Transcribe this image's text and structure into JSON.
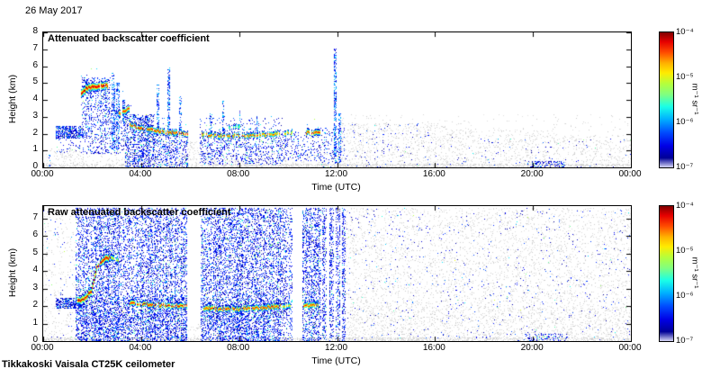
{
  "page": {
    "date_label": "26 May 2017",
    "instrument_label": "Tikkakoski Vaisala CT25K ceilometer"
  },
  "chart_data": [
    {
      "type": "heatmap",
      "title": "Attenuated backscatter coefficient",
      "xlabel": "Time (UTC)",
      "ylabel": "Height (km)",
      "x_range_hours": [
        0,
        24
      ],
      "x_tick_hours": [
        0,
        4,
        8,
        12,
        16,
        20,
        24
      ],
      "x_ticks": [
        "00:00",
        "04:00",
        "08:00",
        "12:00",
        "16:00",
        "20:00",
        "00:00"
      ],
      "y_range_km": [
        0,
        8
      ],
      "y_ticks": [
        0,
        1,
        2,
        3,
        4,
        5,
        6,
        7,
        8
      ],
      "colorbar": {
        "colormap": "jet",
        "scale": "log",
        "min": 1e-07,
        "max": 0.0001,
        "ticks": [
          "10⁻⁴",
          "10⁻⁵",
          "10⁻⁶",
          "10⁻⁷"
        ],
        "unit": "m⁻¹ sr⁻¹"
      },
      "features": {
        "gray_regions": [
          {
            "t": [
              0,
              1.6
            ],
            "h": [
              0,
              1.1
            ],
            "d": 0.1
          },
          {
            "t": [
              1.6,
              12.2
            ],
            "h": [
              0,
              0.9
            ],
            "d": 0.08
          },
          {
            "t": [
              0,
              24
            ],
            "h": [
              0,
              0.18
            ],
            "d": 0.45
          },
          {
            "t": [
              12.2,
              16.5
            ],
            "h": [
              0,
              2.6
            ],
            "d": 0.1
          },
          {
            "t": [
              16.5,
              20.5
            ],
            "h": [
              0,
              2.2
            ],
            "d": 0.09
          },
          {
            "t": [
              20.5,
              24
            ],
            "h": [
              0,
              1.9
            ],
            "d": 0.08
          },
          {
            "t": [
              12.2,
              24
            ],
            "h": [
              0,
              3.1
            ],
            "d": 0.02
          },
          {
            "t": [
              5.9,
              6.6
            ],
            "h": [
              0,
              1.6
            ],
            "d": 0.08
          }
        ],
        "blue_regions": [
          {
            "t": [
              0.55,
              1.65
            ],
            "h": [
              1.75,
              2.45
            ],
            "d": 0.55
          },
          {
            "t": [
              0.55,
              1.65
            ],
            "h": [
              0.9,
              1.75
            ],
            "d": 0.07
          },
          {
            "t": [
              1.6,
              2.75
            ],
            "h": [
              0.8,
              4.4
            ],
            "d": 0.2
          },
          {
            "t": [
              1.6,
              2.75
            ],
            "h": [
              4.4,
              5.3
            ],
            "d": 0.25
          },
          {
            "t": [
              2.75,
              3.35
            ],
            "h": [
              0.8,
              3.4
            ],
            "d": 0.15
          },
          {
            "t": [
              3.35,
              4.5
            ],
            "h": [
              0,
              3.1
            ],
            "d": 0.38
          },
          {
            "t": [
              4.5,
              5.9
            ],
            "h": [
              0,
              2.1
            ],
            "d": 0.25
          },
          {
            "t": [
              6.4,
              9.75
            ],
            "h": [
              0.2,
              1.95
            ],
            "d": 0.2
          },
          {
            "t": [
              6.4,
              9.75
            ],
            "h": [
              1.95,
              2.9
            ],
            "d": 0.06
          },
          {
            "t": [
              9.75,
              11.35
            ],
            "h": [
              0.4,
              2.1
            ],
            "d": 0.15
          },
          {
            "t": [
              11.35,
              12.3
            ],
            "h": [
              0,
              2.4
            ],
            "d": 0.1
          },
          {
            "t": [
              12.3,
              16
            ],
            "h": [
              0,
              2.6
            ],
            "d": 0.022
          },
          {
            "t": [
              16,
              24
            ],
            "h": [
              0,
              1.8
            ],
            "d": 0.012
          },
          {
            "t": [
              19.8,
              21.3
            ],
            "h": [
              0.05,
              0.35
            ],
            "d": 0.25
          }
        ],
        "columns": [
          {
            "t": 0.25,
            "w": 0.05,
            "h": [
              0.1,
              1.0
            ],
            "d": 0.3
          },
          {
            "t": 2.88,
            "w": 0.1,
            "h": [
              1.0,
              5.6
            ],
            "d": 0.45
          },
          {
            "t": 3.05,
            "w": 0.08,
            "h": [
              1.0,
              5.0
            ],
            "d": 0.4
          },
          {
            "t": 3.3,
            "w": 0.08,
            "h": [
              2.5,
              4.0
            ],
            "d": 0.4
          },
          {
            "t": 4.68,
            "w": 0.08,
            "h": [
              2.2,
              4.9
            ],
            "d": 0.45
          },
          {
            "t": 5.12,
            "w": 0.08,
            "h": [
              2.1,
              5.9
            ],
            "d": 0.45
          },
          {
            "t": 5.6,
            "w": 0.07,
            "h": [
              2.0,
              4.3
            ],
            "d": 0.4
          },
          {
            "t": 6.85,
            "w": 0.06,
            "h": [
              2.0,
              3.3
            ],
            "d": 0.4
          },
          {
            "t": 7.35,
            "w": 0.06,
            "h": [
              2.0,
              3.9
            ],
            "d": 0.4
          },
          {
            "t": 8.05,
            "w": 0.06,
            "h": [
              2.1,
              3.4
            ],
            "d": 0.35
          },
          {
            "t": 8.75,
            "w": 0.06,
            "h": [
              2.0,
              3.1
            ],
            "d": 0.35
          },
          {
            "t": 11.92,
            "w": 0.09,
            "h": [
              0.3,
              7.1
            ],
            "d": 0.5
          },
          {
            "t": 12.1,
            "w": 0.07,
            "h": [
              0.3,
              3.2
            ],
            "d": 0.4
          }
        ],
        "cloud_lines": [
          {
            "pts": [
              [
                1.52,
                4.4
              ],
              [
                1.75,
                4.7
              ],
              [
                2.0,
                4.8
              ],
              [
                2.3,
                4.85
              ],
              [
                2.62,
                4.9
              ]
            ],
            "th": 0.28,
            "peak": 0.97,
            "gap": 0.05,
            "halo": 0.5
          },
          {
            "pts": [
              [
                3.12,
                3.25
              ],
              [
                3.5,
                3.5
              ]
            ],
            "th": 0.22,
            "peak": 0.9,
            "gap": 0.1,
            "halo": 0.4
          },
          {
            "pts": [
              [
                3.55,
                2.55
              ],
              [
                3.9,
                2.35
              ],
              [
                4.4,
                2.25
              ],
              [
                5.0,
                2.1
              ],
              [
                5.55,
                2.05
              ],
              [
                5.9,
                2.0
              ]
            ],
            "th": 0.2,
            "peak": 0.92,
            "gap": 0.25,
            "halo": 0.5
          },
          {
            "pts": [
              [
                6.45,
                1.95
              ],
              [
                7.4,
                1.88
              ],
              [
                8.4,
                1.92
              ],
              [
                9.7,
                2.0
              ]
            ],
            "th": 0.18,
            "peak": 0.85,
            "gap": 0.3,
            "halo": 0.5
          },
          {
            "pts": [
              [
                9.85,
                2.02
              ],
              [
                10.25,
                2.08
              ]
            ],
            "th": 0.18,
            "peak": 0.8,
            "gap": 0.3,
            "halo": 0.4
          },
          {
            "pts": [
              [
                10.75,
                2.1
              ],
              [
                11.3,
                2.12
              ]
            ],
            "th": 0.2,
            "peak": 0.9,
            "gap": 0.2,
            "halo": 0.4
          },
          {
            "pts": [
              [
                7.55,
                2.4
              ],
              [
                8.15,
                2.5
              ]
            ],
            "th": 0.15,
            "peak": 0.6,
            "gap": 0.5,
            "halo": 0.3
          }
        ]
      }
    },
    {
      "type": "heatmap",
      "title": "Raw attenuated backscatter coefficient",
      "xlabel": "Time (UTC)",
      "ylabel": "Height (km)",
      "x_range_hours": [
        0,
        24
      ],
      "x_tick_hours": [
        0,
        4,
        8,
        12,
        16,
        20,
        24
      ],
      "x_ticks": [
        "00:00",
        "04:00",
        "08:00",
        "12:00",
        "16:00",
        "20:00",
        "00:00"
      ],
      "y_range_km": [
        0,
        7.7
      ],
      "y_ticks": [
        0,
        1,
        2,
        3,
        4,
        5,
        6,
        7
      ],
      "colorbar": {
        "colormap": "jet",
        "scale": "log",
        "min": 1e-07,
        "max": 0.0001,
        "ticks": [
          "10⁻⁴",
          "10⁻⁵",
          "10⁻⁶",
          "10⁻⁷"
        ],
        "unit": "m⁻¹ sr⁻¹"
      },
      "features": {
        "gray_regions": [
          {
            "t": [
              0,
              1.35
            ],
            "h": [
              0,
              7.55
            ],
            "d": 0.05
          },
          {
            "t": [
              12.35,
              24
            ],
            "h": [
              0,
              7.55
            ],
            "d": 0.085
          },
          {
            "t": [
              12.35,
              24
            ],
            "h": [
              0,
              2.0
            ],
            "d": 0.06
          },
          {
            "t": [
              0,
              24
            ],
            "h": [
              0,
              0.18
            ],
            "d": 0.45
          },
          {
            "t": [
              5.9,
              6.45
            ],
            "h": [
              0,
              1.2
            ],
            "d": 0.05
          }
        ],
        "blue_regions": [
          {
            "t": [
              0.55,
              1.65
            ],
            "h": [
              1.85,
              2.45
            ],
            "d": 0.6
          },
          {
            "t": [
              0,
              1.35
            ],
            "h": [
              0,
              7.55
            ],
            "d": 0.01
          },
          {
            "t": [
              1.35,
              5.85
            ],
            "h": [
              0,
              7.55
            ],
            "d": 0.28
          },
          {
            "t": [
              1.35,
              5.85
            ],
            "h": [
              0,
              2.6
            ],
            "d": 0.15
          },
          {
            "t": [
              6.45,
              9.7
            ],
            "h": [
              0,
              7.55
            ],
            "d": 0.28
          },
          {
            "t": [
              6.45,
              9.7
            ],
            "h": [
              0,
              2.4
            ],
            "d": 0.15
          },
          {
            "t": [
              9.7,
              10.15
            ],
            "h": [
              0,
              7.55
            ],
            "d": 0.22
          },
          {
            "t": [
              10.6,
              11.35
            ],
            "h": [
              0,
              7.55
            ],
            "d": 0.28
          },
          {
            "t": [
              11.4,
              11.55
            ],
            "h": [
              0,
              7.55
            ],
            "d": 0.32
          },
          {
            "t": [
              11.7,
              11.85
            ],
            "h": [
              0,
              7.55
            ],
            "d": 0.32
          },
          {
            "t": [
              11.98,
              12.12
            ],
            "h": [
              0,
              7.55
            ],
            "d": 0.32
          },
          {
            "t": [
              12.22,
              12.34
            ],
            "h": [
              0,
              7.55
            ],
            "d": 0.28
          },
          {
            "t": [
              12.35,
              24
            ],
            "h": [
              0,
              7.55
            ],
            "d": 0.012
          },
          {
            "t": [
              19.6,
              21.4
            ],
            "h": [
              0.05,
              0.4
            ],
            "d": 0.2
          }
        ],
        "columns": [],
        "cloud_lines": [
          {
            "pts": [
              [
                1.4,
                2.3
              ],
              [
                1.7,
                2.5
              ],
              [
                1.95,
                2.9
              ],
              [
                2.2,
                4.3
              ],
              [
                2.45,
                4.7
              ],
              [
                2.7,
                4.8
              ]
            ],
            "th": 0.26,
            "peak": 0.95,
            "gap": 0.08,
            "halo": 0.5
          },
          {
            "pts": [
              [
                2.75,
                4.75
              ],
              [
                3.1,
                4.6
              ]
            ],
            "th": 0.2,
            "peak": 0.7,
            "gap": 0.4,
            "halo": 0.3
          },
          {
            "pts": [
              [
                3.5,
                2.2
              ],
              [
                4.3,
                2.1
              ],
              [
                5.2,
                2.05
              ],
              [
                5.85,
                2.0
              ]
            ],
            "th": 0.2,
            "peak": 0.9,
            "gap": 0.2,
            "halo": 0.5
          },
          {
            "pts": [
              [
                6.5,
                1.9
              ],
              [
                7.5,
                1.85
              ],
              [
                8.6,
                1.9
              ],
              [
                9.7,
                2.0
              ]
            ],
            "th": 0.2,
            "peak": 0.88,
            "gap": 0.15,
            "halo": 0.6
          },
          {
            "pts": [
              [
                9.75,
                2.0
              ],
              [
                10.1,
                2.05
              ]
            ],
            "th": 0.18,
            "peak": 0.75,
            "gap": 0.3,
            "halo": 0.4
          },
          {
            "pts": [
              [
                10.65,
                2.05
              ],
              [
                11.3,
                2.1
              ]
            ],
            "th": 0.2,
            "peak": 0.85,
            "gap": 0.2,
            "halo": 0.4
          }
        ]
      }
    }
  ]
}
